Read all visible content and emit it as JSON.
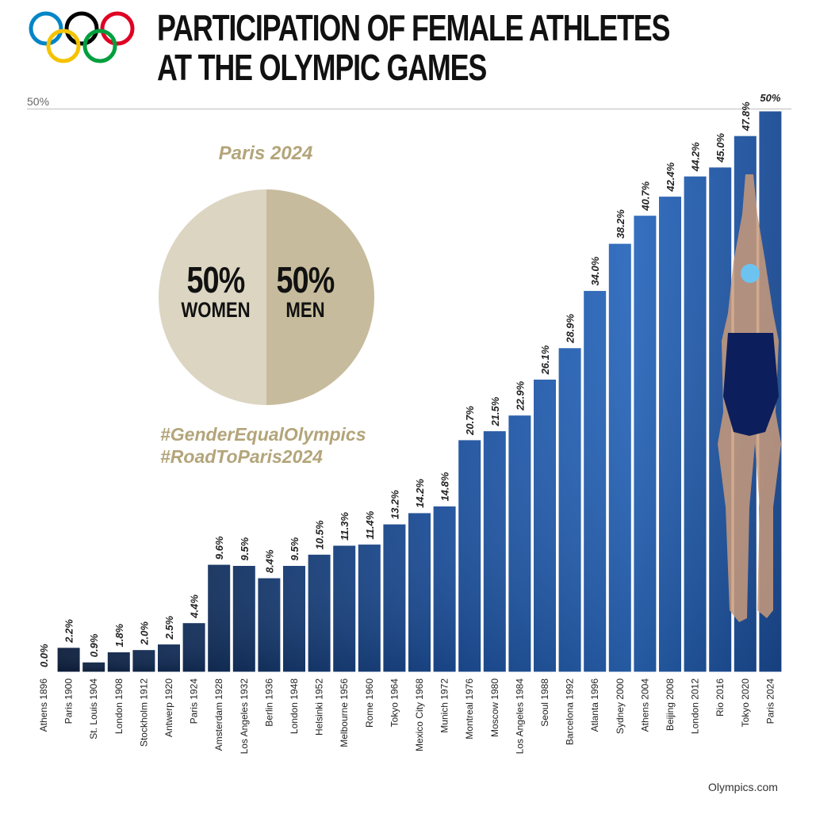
{
  "header": {
    "title_line1": "PARTICIPATION OF FEMALE ATHLETES",
    "title_line2": "AT THE OLYMPIC GAMES",
    "reference_label": "50%"
  },
  "logo": {
    "icon": "olympic-rings-icon",
    "colors": [
      "#0085c7",
      "#f4c300",
      "#000000",
      "#009f3d",
      "#df0024"
    ]
  },
  "inset": {
    "title": "Paris 2024",
    "women_pct": "50%",
    "women_label": "WOMEN",
    "men_pct": "50%",
    "men_label": "MEN",
    "women_color": "#dcd5c2",
    "men_color": "#c6bc9d",
    "hashtag1": "#GenderEqualOlympics",
    "hashtag2": "#RoadToParis2024",
    "accent": "#b3a57a"
  },
  "footer": {
    "credit": "Olympics.com"
  },
  "chart_data": {
    "type": "bar",
    "ylim": [
      0,
      50
    ],
    "categories": [
      "Athens 1896",
      "Paris 1900",
      "St. Louis 1904",
      "London 1908",
      "Stockholm 1912",
      "Antwerp 1920",
      "Paris 1924",
      "Amsterdam 1928",
      "Los Angeles 1932",
      "Berlin 1936",
      "London 1948",
      "Helsinki 1952",
      "Melbourne 1956",
      "Rome 1960",
      "Tokyo 1964",
      "Mexico City 1968",
      "Munich 1972",
      "Montreal 1976",
      "Moscow 1980",
      "Los Angeles 1984",
      "Seoul 1988",
      "Barcelona 1992",
      "Atlanta 1996",
      "Sydney 2000",
      "Athens 2004",
      "Beijing 2008",
      "London 2012",
      "Rio 2016",
      "Tokyo 2020",
      "Paris 2024"
    ],
    "values": [
      0.0,
      2.2,
      0.9,
      1.8,
      2.0,
      2.5,
      4.4,
      9.6,
      9.5,
      8.4,
      9.5,
      10.5,
      11.3,
      11.4,
      13.2,
      14.2,
      14.8,
      20.7,
      21.5,
      22.9,
      26.1,
      28.9,
      34.0,
      38.2,
      40.7,
      42.4,
      44.2,
      45.0,
      47.8,
      50.0
    ],
    "value_labels": [
      "0.0%",
      "2.2%",
      "0.9%",
      "1.8%",
      "2.0%",
      "2.5%",
      "4.4%",
      "9.6%",
      "9.5%",
      "8.4%",
      "9.5%",
      "10.5%",
      "11.3%",
      "11.4%",
      "13.2%",
      "14.2%",
      "14.8%",
      "20.7%",
      "21.5%",
      "22.9%",
      "26.1%",
      "28.9%",
      "34.0%",
      "38.2%",
      "40.7%",
      "42.4%",
      "44.2%",
      "45.0%",
      "47.8%",
      "50%"
    ],
    "colors": {
      "dark": "#0b1a36",
      "mid": "#163b7a",
      "light": "#2d6fc4"
    }
  }
}
